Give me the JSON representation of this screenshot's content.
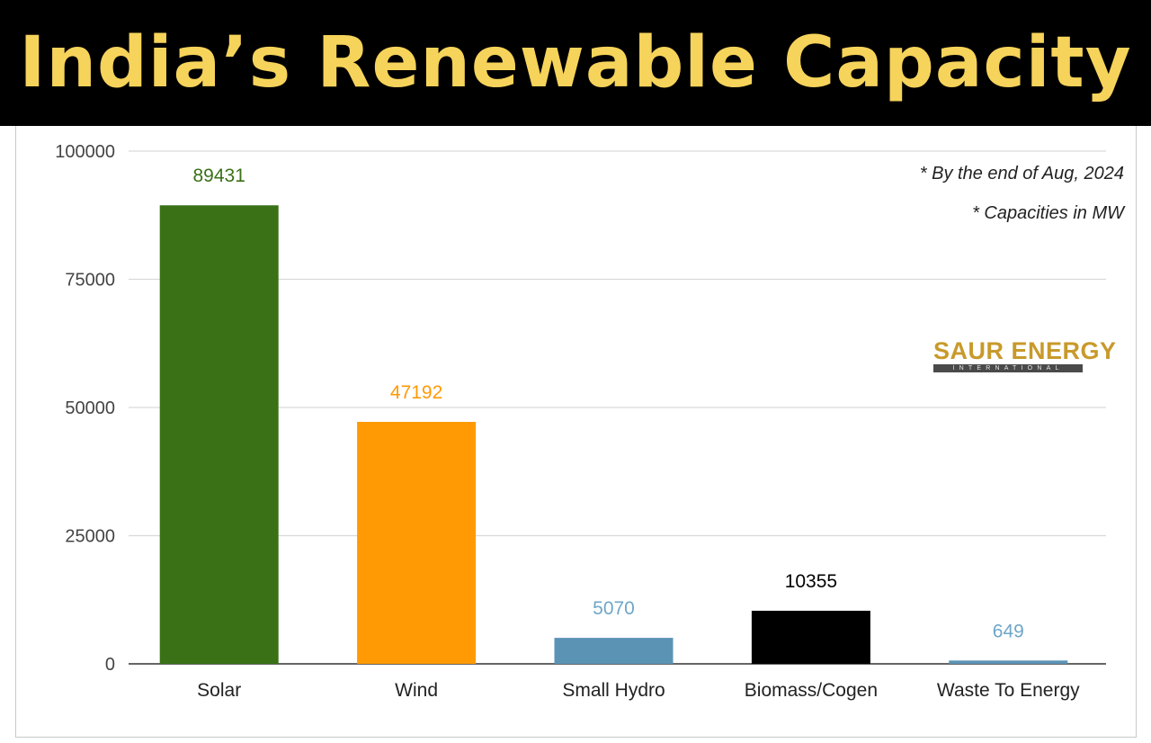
{
  "header": {
    "title": "India’s Renewable Capacity"
  },
  "notes": [
    "* By the end of Aug, 2024",
    "* Capacities in MW"
  ],
  "logo": {
    "name": "SAUR ENERGY",
    "tagline": "INTERNATIONAL"
  },
  "chart_data": {
    "type": "bar",
    "title": "",
    "xlabel": "",
    "ylabel": "",
    "categories": [
      "Solar",
      "Wind",
      "Small Hydro",
      "Biomass/Cogen",
      "Waste To Energy"
    ],
    "values": [
      89431,
      47192,
      5070,
      10355,
      649
    ],
    "value_labels": [
      "89431",
      "47192",
      "5070",
      "10355",
      "649"
    ],
    "colors": [
      "#3a7117",
      "#ff9a05",
      "#5b93b5",
      "#000000",
      "#5b93b5"
    ],
    "label_colors": [
      "#3a7117",
      "#ff9a05",
      "#6fa6c8",
      "#000000",
      "#6fa6c8"
    ],
    "ylim": [
      0,
      100000
    ],
    "yticks": [
      0,
      25000,
      50000,
      75000,
      100000
    ],
    "ytick_labels": [
      "0",
      "25000",
      "50000",
      "75000",
      "100000"
    ],
    "grid": true,
    "legend": "none"
  }
}
